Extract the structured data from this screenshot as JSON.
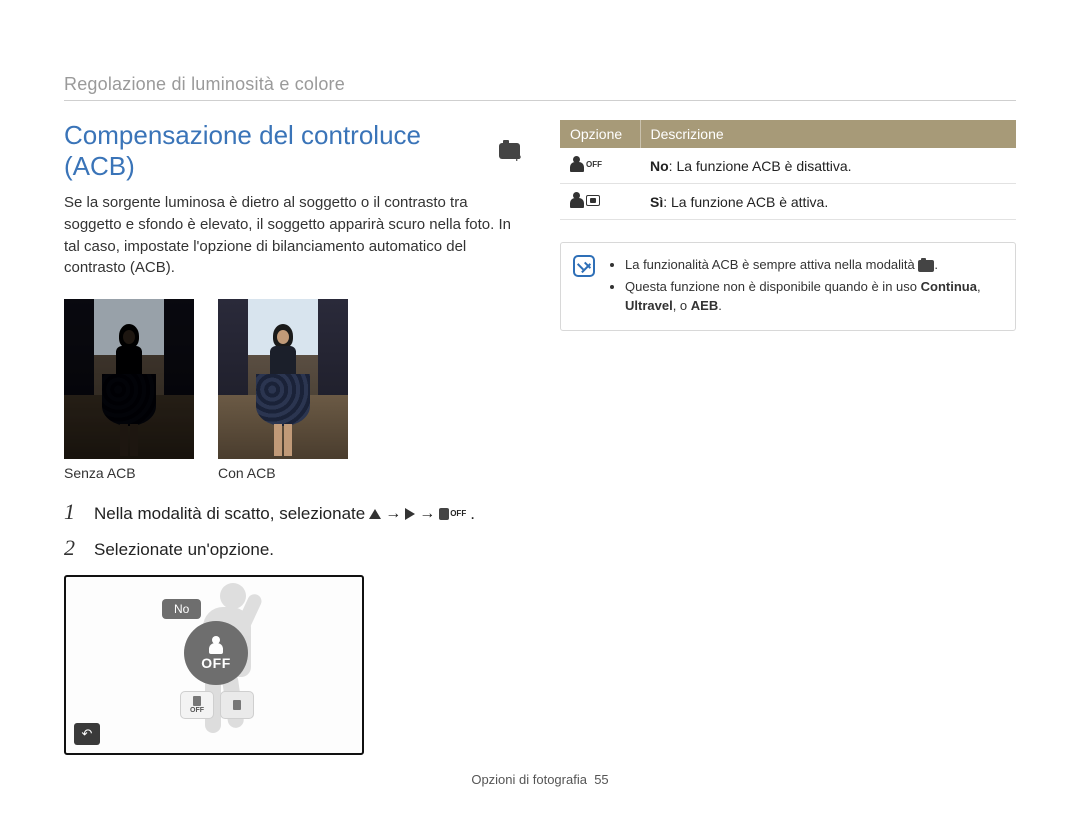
{
  "colors": {
    "heading": "#3a74b8",
    "section_label": "#9a9a9a",
    "table_header_bg": "#a79a78",
    "table_header_fg": "#ffffff",
    "note_border": "#d8d8d8",
    "note_icon": "#2e6fb7",
    "lcd_chip_bg": "#6e6e6e"
  },
  "section_label": "Regolazione di luminosità e colore",
  "heading": "Compensazione del controluce (ACB)",
  "intro": "Se la sorgente luminosa è dietro al soggetto o il contrasto tra soggetto e sfondo è elevato, il soggetto apparirà scuro nella foto. In tal caso, impostate l'opzione di bilanciamento automatico del contrasto (ACB).",
  "photos": {
    "left_caption": "Senza ACB",
    "right_caption": "Con ACB"
  },
  "steps": {
    "s1_num": "1",
    "s1_pre": "Nella modalità di scatto, selezionate",
    "s1_arrow": "→",
    "s1_end": ".",
    "s2_num": "2",
    "s2_text": "Selezionate un'opzione."
  },
  "lcd": {
    "label": "No",
    "big_off": "OFF",
    "chip1": "OFF",
    "chip2": "",
    "back_glyph": "↶"
  },
  "table": {
    "h1": "Opzione",
    "h2": "Descrizione",
    "row1_icon_suffix": "OFF",
    "row1_bold": "No",
    "row1_rest": ": La funzione ACB è disattiva.",
    "row2_bold": "Sì",
    "row2_rest": ": La funzione ACB è attiva."
  },
  "note": {
    "li1_pre": "La funzionalità ACB è sempre attiva nella modalità ",
    "li1_post": ".",
    "li2_pre": "Questa funzione non è disponibile quando è in uso ",
    "li2_b1": "Continua",
    "li2_mid": ", ",
    "li2_b2": "Ultravel",
    "li2_mid2": ", o ",
    "li2_b3": "AEB",
    "li2_end": "."
  },
  "footer": {
    "label": "Opzioni di fotografia",
    "page": "55"
  }
}
